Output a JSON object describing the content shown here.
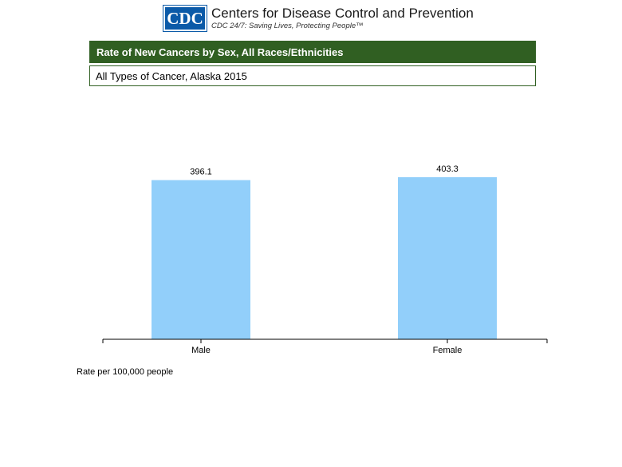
{
  "header": {
    "logo_text": "CDC",
    "org_name": "Centers for Disease Control and Prevention",
    "tagline": "CDC 24/7: Saving Lives, Protecting People™",
    "brand_color": "#0b5aa8"
  },
  "chart_data": {
    "type": "bar",
    "title": "Rate of New Cancers by Sex, All Races/Ethnicities",
    "subtitle": "All Types of Cancer, Alaska 2015",
    "categories": [
      "Male",
      "Female"
    ],
    "values": [
      396.1,
      403.3
    ],
    "value_labels": [
      "396.1",
      "403.3"
    ],
    "xlabel": "",
    "ylabel": "",
    "ylim": [
      0,
      403.3
    ],
    "grid": false,
    "legend": "none",
    "bar_color": "#92cffa",
    "title_bar_color": "#305f22"
  },
  "footnote": "Rate per 100,000 people"
}
